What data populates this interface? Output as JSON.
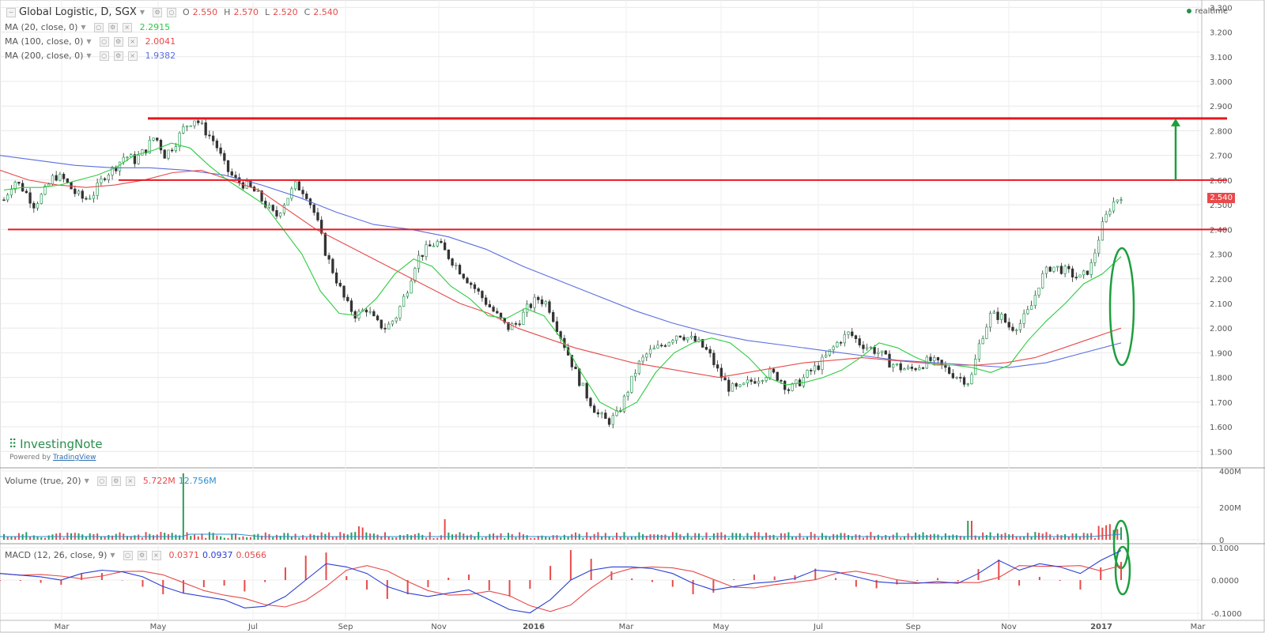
{
  "header": {
    "symbol": "Global Logistic, D, SGX",
    "open_label": "O",
    "open": "2.550",
    "high_label": "H",
    "high": "2.570",
    "low_label": "L",
    "low": "2.520",
    "close_label": "C",
    "close": "2.540",
    "realtime": "realtime"
  },
  "indicators": {
    "ma20": {
      "label": "MA (20, close, 0)",
      "value": "2.2915",
      "color": "#2ecc40"
    },
    "ma100": {
      "label": "MA (100, close, 0)",
      "value": "2.0041",
      "color": "#e84a4a"
    },
    "ma200": {
      "label": "MA (200, close, 0)",
      "value": "1.9382",
      "color": "#5b6ee1"
    },
    "volume": {
      "label": "Volume (true, 20)",
      "value1": "5.722M",
      "value2": "12.756M"
    },
    "macd": {
      "label": "MACD (12, 26, close, 9)",
      "hist": "0.0371",
      "macd": "0.0937",
      "signal": "0.0566"
    }
  },
  "brand": {
    "name": "InvestingNote",
    "powered_prefix": "Powered by",
    "powered_link": "TradingView"
  },
  "last_price_tag": "2.540",
  "chart_data": {
    "type": "candlestick",
    "x_ticks": [
      "Mar",
      "May",
      "Jul",
      "Sep",
      "Nov",
      "2016",
      "Mar",
      "May",
      "Jul",
      "Sep",
      "Nov",
      "2017",
      "Mar"
    ],
    "price_axis": {
      "ticks": [
        "3.300",
        "3.200",
        "3.100",
        "3.000",
        "2.900",
        "2.800",
        "2.700",
        "2.600",
        "2.500",
        "2.400",
        "2.300",
        "2.200",
        "2.100",
        "2.000",
        "1.900",
        "1.800",
        "1.700",
        "1.600",
        "1.500"
      ],
      "ylim": [
        1.44,
        3.33
      ]
    },
    "volume_axis": {
      "ticks": [
        "400M",
        "200M",
        "0"
      ]
    },
    "macd_axis": {
      "ticks": [
        "0.1000",
        "0.0000",
        "-0.1000"
      ]
    },
    "price_path": [
      2.52,
      2.6,
      2.56,
      2.5,
      2.55,
      2.62,
      2.6,
      2.55,
      2.52,
      2.55,
      2.62,
      2.65,
      2.7,
      2.68,
      2.72,
      2.78,
      2.7,
      2.75,
      2.82,
      2.85,
      2.8,
      2.75,
      2.65,
      2.6,
      2.58,
      2.55,
      2.5,
      2.45,
      2.52,
      2.58,
      2.55,
      2.45,
      2.3,
      2.2,
      2.1,
      2.05,
      2.08,
      2.02,
      2.0,
      2.05,
      2.15,
      2.28,
      2.32,
      2.35,
      2.3,
      2.25,
      2.2,
      2.15,
      2.1,
      2.05,
      2.0,
      2.02,
      2.08,
      2.12,
      2.1,
      2.0,
      1.9,
      1.8,
      1.72,
      1.65,
      1.62,
      1.65,
      1.75,
      1.85,
      1.9,
      1.92,
      1.95,
      1.98,
      1.96,
      1.94,
      1.9,
      1.82,
      1.76,
      1.75,
      1.78,
      1.8,
      1.82,
      1.8,
      1.75,
      1.78,
      1.82,
      1.85,
      1.9,
      1.95,
      1.98,
      1.94,
      1.92,
      1.9,
      1.86,
      1.84,
      1.83,
      1.85,
      1.87,
      1.85,
      1.82,
      1.8,
      1.78,
      1.95,
      2.05,
      2.05,
      2.0,
      2.02,
      2.08,
      2.2,
      2.25,
      2.24,
      2.22,
      2.2,
      2.25,
      2.4,
      2.5,
      2.54
    ],
    "ma20_path": [
      2.56,
      2.57,
      2.57,
      2.58,
      2.6,
      2.62,
      2.65,
      2.7,
      2.72,
      2.75,
      2.73,
      2.66,
      2.6,
      2.55,
      2.5,
      2.4,
      2.3,
      2.15,
      2.06,
      2.05,
      2.12,
      2.22,
      2.28,
      2.25,
      2.17,
      2.12,
      2.05,
      2.04,
      2.08,
      2.05,
      1.95,
      1.82,
      1.7,
      1.66,
      1.7,
      1.82,
      1.9,
      1.94,
      1.96,
      1.94,
      1.88,
      1.8,
      1.77,
      1.78,
      1.8,
      1.83,
      1.88,
      1.94,
      1.92,
      1.88,
      1.85,
      1.85,
      1.84,
      1.82,
      1.85,
      1.95,
      2.03,
      2.1,
      2.18,
      2.22,
      2.29
    ],
    "ma100_path": [
      2.64,
      2.6,
      2.58,
      2.57,
      2.58,
      2.6,
      2.63,
      2.64,
      2.6,
      2.56,
      2.48,
      2.4,
      2.34,
      2.28,
      2.22,
      2.16,
      2.1,
      2.06,
      2.0,
      1.96,
      1.92,
      1.89,
      1.86,
      1.84,
      1.82,
      1.8,
      1.82,
      1.84,
      1.86,
      1.87,
      1.88,
      1.87,
      1.86,
      1.85,
      1.85,
      1.86,
      1.88,
      1.92,
      1.96,
      2.0
    ],
    "ma200_path": [
      2.7,
      2.68,
      2.66,
      2.65,
      2.65,
      2.64,
      2.62,
      2.58,
      2.53,
      2.47,
      2.42,
      2.4,
      2.37,
      2.32,
      2.25,
      2.19,
      2.13,
      2.07,
      2.02,
      1.98,
      1.95,
      1.93,
      1.91,
      1.89,
      1.87,
      1.86,
      1.85,
      1.84,
      1.86,
      1.9,
      1.94
    ],
    "resistance_levels": [
      2.85,
      2.6,
      2.4
    ]
  }
}
